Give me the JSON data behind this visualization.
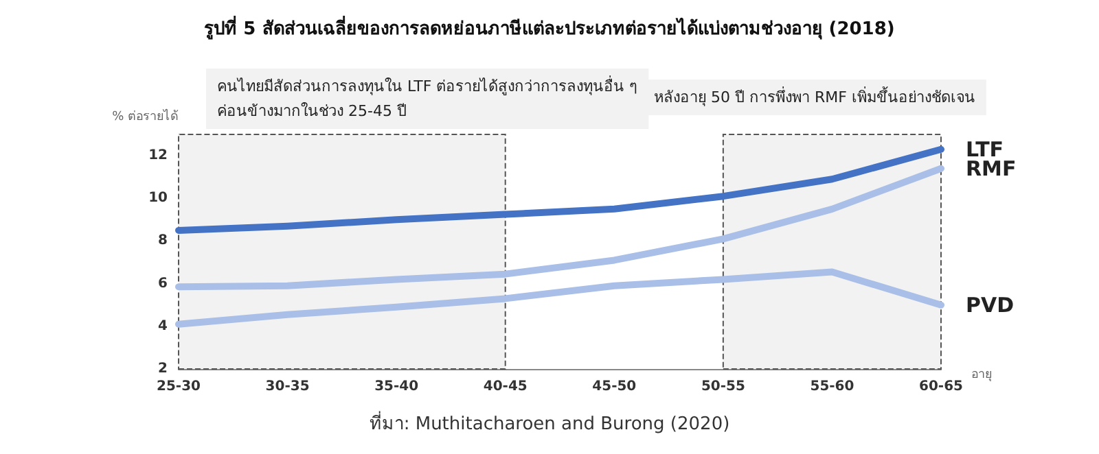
{
  "chart_data": {
    "type": "line",
    "title": "รูปที่ 5 สัดส่วนเฉลี่ยของการลดหย่อนภาษีแต่ละประเภทต่อรายได้แบ่งตามช่วงอายุ (2018)",
    "xlabel": "อายุ",
    "ylabel": "% ต่อรายได้",
    "categories": [
      "25-30",
      "30-35",
      "35-40",
      "40-45",
      "45-50",
      "50-55",
      "55-60",
      "60-65"
    ],
    "series": [
      {
        "name": "LTF",
        "color": "#4472c4",
        "values": [
          8.5,
          8.7,
          9.0,
          9.25,
          9.5,
          10.1,
          10.9,
          12.3
        ]
      },
      {
        "name": "RMF",
        "color": "#a9bfe8",
        "values": [
          5.85,
          5.9,
          6.2,
          6.45,
          7.1,
          8.1,
          9.5,
          11.4
        ]
      },
      {
        "name": "PVD",
        "color": "#a9bfe8",
        "values": [
          4.1,
          4.55,
          4.9,
          5.3,
          5.9,
          6.2,
          6.55,
          5.0
        ]
      }
    ],
    "ylim": [
      2,
      13
    ],
    "yticks": [
      2,
      4,
      6,
      8,
      10,
      12
    ],
    "grid": false,
    "legend": false,
    "marker": "none",
    "line_style": "solid",
    "bands": [
      {
        "axis": "x",
        "from": "25-30",
        "to": "40-45",
        "color": "#f2f2f2"
      },
      {
        "axis": "x",
        "from": "50-55",
        "to": "60-65",
        "color": "#f2f2f2"
      }
    ],
    "annotations": [
      "คนไทยมีสัดส่วนการลงทุนใน LTF ต่อรายได้สูงกว่าการลงทุนอื่น ๆ\nค่อนข้างมากในช่วง 25-45 ปี",
      "หลังอายุ 50 ปี การพึ่งพา RMF เพิ่มขึ้นอย่างชัดเจน",
      "ที่มา: Muthitacharoen and Burong (2020)"
    ]
  }
}
